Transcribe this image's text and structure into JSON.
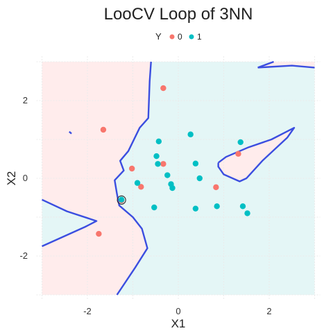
{
  "chart_data": {
    "type": "scatter",
    "title": "LooCV Loop of 3NN",
    "xlabel": "X1",
    "ylabel": "X2",
    "xlim": [
      -3,
      3
    ],
    "ylim": [
      -3,
      3
    ],
    "x_ticks": [
      -2,
      0,
      2
    ],
    "y_ticks": [
      -2,
      0,
      2
    ],
    "legend": {
      "title": "Y",
      "position": "top",
      "entries": [
        "0",
        "1"
      ]
    },
    "colors": {
      "0": "#F8766D",
      "1": "#00BFC4",
      "region_0": "#FFECEC",
      "region_1": "#E4F6F6",
      "boundary": "#3B4EE0"
    },
    "grid": true,
    "points": [
      {
        "x": -0.33,
        "y": 2.32,
        "class": "0"
      },
      {
        "x": -1.65,
        "y": 1.25,
        "class": "0"
      },
      {
        "x": -1.02,
        "y": 0.25,
        "class": "0"
      },
      {
        "x": -0.33,
        "y": 0.37,
        "class": "0"
      },
      {
        "x": -0.82,
        "y": -0.22,
        "class": "0"
      },
      {
        "x": -1.25,
        "y": -0.57,
        "class": "0"
      },
      {
        "x": -1.75,
        "y": -1.43,
        "class": "0"
      },
      {
        "x": 0.83,
        "y": -0.23,
        "class": "0"
      },
      {
        "x": 1.32,
        "y": 0.63,
        "class": "0"
      },
      {
        "x": 0.27,
        "y": 1.13,
        "class": "1"
      },
      {
        "x": 1.37,
        "y": 0.93,
        "class": "1"
      },
      {
        "x": -0.43,
        "y": 0.95,
        "class": "1"
      },
      {
        "x": -0.48,
        "y": 0.57,
        "class": "1"
      },
      {
        "x": -0.45,
        "y": 0.37,
        "class": "1"
      },
      {
        "x": 0.38,
        "y": 0.38,
        "class": "1"
      },
      {
        "x": -0.24,
        "y": 0.08,
        "class": "1"
      },
      {
        "x": 0.47,
        "y": 0.0,
        "class": "1"
      },
      {
        "x": -0.9,
        "y": -0.12,
        "class": "1"
      },
      {
        "x": -0.16,
        "y": -0.15,
        "class": "1"
      },
      {
        "x": -0.13,
        "y": -0.25,
        "class": "1"
      },
      {
        "x": -1.25,
        "y": -0.55,
        "class": "1"
      },
      {
        "x": -0.53,
        "y": -0.75,
        "class": "1"
      },
      {
        "x": 0.38,
        "y": -0.78,
        "class": "1"
      },
      {
        "x": 0.85,
        "y": -0.72,
        "class": "1"
      },
      {
        "x": 1.42,
        "y": -0.72,
        "class": "1"
      },
      {
        "x": 1.52,
        "y": -0.9,
        "class": "1"
      }
    ],
    "regions": [
      {
        "class": "0",
        "polygon": [
          [
            -3,
            3
          ],
          [
            -0.6,
            3
          ],
          [
            -0.63,
            2.5
          ],
          [
            -0.66,
            1.55
          ],
          [
            -0.85,
            1.3
          ],
          [
            -1.1,
            0.7
          ],
          [
            -1.28,
            0.45
          ],
          [
            -1.2,
            0.2
          ],
          [
            -1.4,
            -0.05
          ],
          [
            -1.35,
            -0.4
          ],
          [
            -1.3,
            -0.7
          ],
          [
            -1.0,
            -1.0
          ],
          [
            -0.8,
            -1.3
          ],
          [
            -0.68,
            -1.8
          ],
          [
            -0.95,
            -2.3
          ],
          [
            -1.35,
            -3
          ],
          [
            -3,
            -3
          ],
          [
            -3,
            -1.75
          ],
          [
            -2.05,
            -1.25
          ],
          [
            -1.8,
            -1.1
          ],
          [
            -2.45,
            -0.85
          ],
          [
            -3,
            -0.55
          ]
        ]
      },
      {
        "class": "0",
        "polygon": [
          [
            1.75,
            2.85
          ],
          [
            2.1,
            3
          ],
          [
            3,
            3
          ],
          [
            3,
            2.85
          ],
          [
            2.5,
            2.9
          ]
        ]
      },
      {
        "class": "0",
        "polygon": [
          [
            0.88,
            0.4
          ],
          [
            1.05,
            0.55
          ],
          [
            1.55,
            0.8
          ],
          [
            2.05,
            1.0
          ],
          [
            2.55,
            1.3
          ],
          [
            2.4,
            1.05
          ],
          [
            1.85,
            0.45
          ],
          [
            1.5,
            0.0
          ],
          [
            1.35,
            -0.08
          ],
          [
            1.0,
            0.1
          ],
          [
            0.88,
            0.3
          ]
        ]
      }
    ],
    "boundaries": [
      [
        [
          -0.6,
          3
        ],
        [
          -0.63,
          2.5
        ],
        [
          -0.66,
          1.55
        ],
        [
          -0.85,
          1.3
        ],
        [
          -1.1,
          0.7
        ],
        [
          -1.28,
          0.45
        ],
        [
          -1.2,
          0.2
        ],
        [
          -1.4,
          -0.05
        ],
        [
          -1.35,
          -0.4
        ],
        [
          -1.3,
          -0.7
        ],
        [
          -1.0,
          -1.0
        ],
        [
          -0.8,
          -1.3
        ],
        [
          -0.68,
          -1.8
        ],
        [
          -0.95,
          -2.3
        ],
        [
          -1.35,
          -3
        ]
      ],
      [
        [
          -3,
          -1.75
        ],
        [
          -2.05,
          -1.25
        ],
        [
          -1.8,
          -1.1
        ],
        [
          -2.45,
          -0.85
        ],
        [
          -3,
          -0.55
        ]
      ],
      [
        [
          1.75,
          2.85
        ],
        [
          2.1,
          3
        ]
      ],
      [
        [
          1.75,
          2.85
        ],
        [
          2.5,
          2.9
        ],
        [
          3,
          2.85
        ]
      ],
      [
        [
          0.88,
          0.4
        ],
        [
          1.05,
          0.55
        ],
        [
          1.55,
          0.8
        ],
        [
          2.05,
          1.0
        ],
        [
          2.55,
          1.3
        ],
        [
          2.4,
          1.05
        ],
        [
          1.85,
          0.45
        ],
        [
          1.5,
          0.0
        ],
        [
          1.35,
          -0.08
        ],
        [
          1.0,
          0.1
        ],
        [
          0.88,
          0.3
        ],
        [
          0.88,
          0.4
        ]
      ],
      [
        [
          -2.4,
          1.2
        ],
        [
          -2.35,
          1.15
        ]
      ]
    ],
    "highlighted_point": {
      "x": -1.25,
      "y": -0.56
    }
  }
}
